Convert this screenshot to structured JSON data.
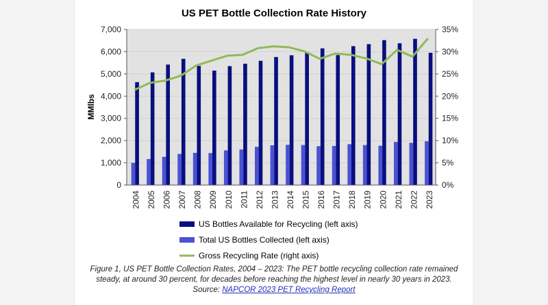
{
  "chart_data": {
    "type": "bar",
    "title": "US PET Bottle Collection Rate History",
    "ylabel": "MMlbs",
    "xlabel": "",
    "categories": [
      "2004",
      "2005",
      "2006",
      "2007",
      "2008",
      "2009",
      "2010",
      "2011",
      "2012",
      "2013",
      "2014",
      "2015",
      "2016",
      "2017",
      "2018",
      "2019",
      "2020",
      "2021",
      "2022",
      "2023"
    ],
    "left_axis": {
      "min": 0,
      "max": 7000,
      "step": 1000,
      "ticks": [
        "0",
        "1,000",
        "2,000",
        "3,000",
        "4,000",
        "5,000",
        "6,000",
        "7,000"
      ]
    },
    "right_axis": {
      "min": 0,
      "max": 35,
      "step": 5,
      "ticks": [
        "0%",
        "5%",
        "10%",
        "15%",
        "20%",
        "25%",
        "30%",
        "35%"
      ]
    },
    "grid": true,
    "legend_position": "bottom",
    "series": [
      {
        "name": "US Bottles Available for Recycling (left axis)",
        "type": "bar",
        "axis": "left",
        "color": "#0a0f7e",
        "values": [
          4630,
          5070,
          5420,
          5680,
          5360,
          5150,
          5350,
          5460,
          5590,
          5760,
          5840,
          5950,
          6150,
          5850,
          6250,
          6340,
          6520,
          6380,
          6580,
          5950
        ]
      },
      {
        "name": "Total US Bottles Collected (left axis)",
        "type": "bar",
        "axis": "left",
        "color": "#4a52d4",
        "values": [
          1000,
          1170,
          1270,
          1400,
          1450,
          1440,
          1560,
          1600,
          1720,
          1790,
          1810,
          1800,
          1750,
          1760,
          1840,
          1800,
          1770,
          1940,
          1900,
          1970
        ]
      },
      {
        "name": "Gross Recycling Rate (right axis)",
        "type": "line",
        "axis": "right",
        "color": "#8fba57",
        "values": [
          21.4,
          23.0,
          23.5,
          24.6,
          26.9,
          28.0,
          29.1,
          29.3,
          30.8,
          31.2,
          31.0,
          30.1,
          28.4,
          29.6,
          29.3,
          28.5,
          27.2,
          30.4,
          28.9,
          33.0
        ]
      }
    ],
    "colors": {
      "plot_background": "#e2e2e2",
      "axis": "#555555",
      "grid": "#cfcfcf"
    }
  },
  "caption": {
    "line1": "Figure 1, US PET Bottle Collection Rates, 2004 – 2023: The PET bottle recycling collection rate remained",
    "line2": "steady, at around 30 percent, for decades before reaching the highest level in nearly 30 years in 2023.",
    "source_prefix": "Source: ",
    "source_link": "NAPCOR 2023 PET Recycling Report"
  }
}
